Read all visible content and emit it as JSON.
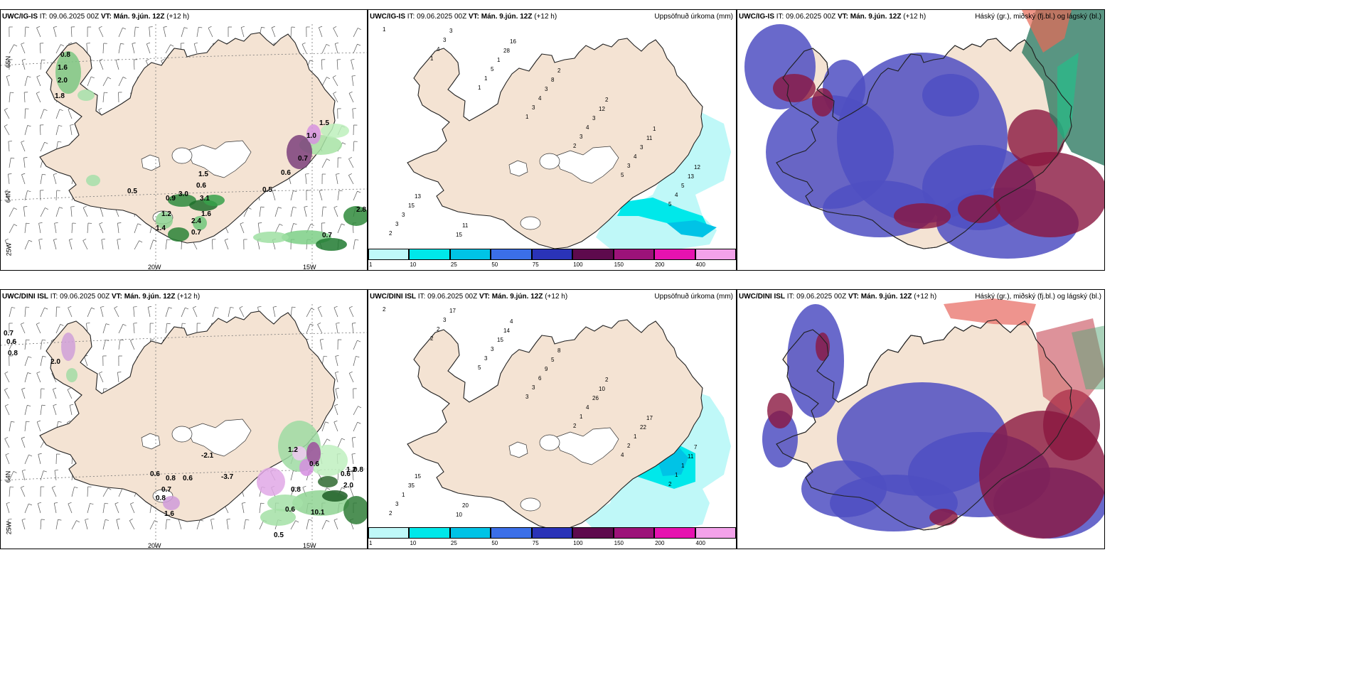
{
  "panels": [
    {
      "model": "UWC/IG-IS",
      "it": "IT: 09.06.2025 00Z",
      "vt": "VT: Mán. 9.jún. 12Z",
      "lead": "(+12 h)",
      "right": ""
    },
    {
      "model": "UWC/IG-IS",
      "it": "IT: 09.06.2025 00Z",
      "vt": "VT: Mán. 9.jún. 12Z",
      "lead": "(+12 h)",
      "right": "Uppsöfnuð úrkoma (mm)"
    },
    {
      "model": "UWC/IG-IS",
      "it": "IT: 09.06.2025 00Z",
      "vt": "VT: Mán. 9.jún. 12Z",
      "lead": "(+12 h)",
      "right": "Háský (gr.), miðský (fj.bl.) og lágský (bl.)"
    },
    {
      "model": "UWC/DINI ISL",
      "it": "IT: 09.06.2025 00Z",
      "vt": "VT: Mán. 9.jún. 12Z",
      "lead": "(+12 h)",
      "right": ""
    },
    {
      "model": "UWC/DINI ISL",
      "it": "IT: 09.06.2025 00Z",
      "vt": "VT: Mán. 9.jún. 12Z",
      "lead": "(+12 h)",
      "right": "Uppsöfnuð úrkoma (mm)"
    },
    {
      "model": "UWC/DINI ISL",
      "it": "IT: 09.06.2025 00Z",
      "vt": "VT: Mán. 9.jún. 12Z",
      "lead": "(+12 h)",
      "right": "Háský (gr.), miðský (fj.bl.) og lágský (bl.)"
    }
  ],
  "axes": {
    "lon_a": "20W",
    "lon_b": "15W",
    "lat_a": "65N",
    "lat_b": "64N",
    "lat_c": "25W"
  },
  "colorbar": {
    "ticks": [
      "1",
      "10",
      "25",
      "50",
      "75",
      "100",
      "150",
      "200",
      "400"
    ],
    "colors": [
      "#bff8f8",
      "#00e8ea",
      "#00c3e6",
      "#3b6fe8",
      "#2a33b8",
      "#5e0a4d",
      "#9c1279",
      "#e612b0",
      "#f3a2ea"
    ]
  },
  "precip_top": [
    "1",
    "1",
    "1",
    "1",
    "2",
    "5",
    "5",
    "2",
    "4",
    "1",
    "3",
    "3",
    "3",
    "4",
    "3",
    "3",
    "5",
    "4",
    "4",
    "4",
    "5",
    "3",
    "3",
    "1",
    "3",
    "3",
    "3",
    "13",
    "15",
    "15",
    "28",
    "8",
    "12",
    "11",
    "12",
    "13",
    "11",
    "16",
    "2",
    "2",
    "1"
  ],
  "precip_bottom": [
    "2",
    "2",
    "5",
    "3",
    "2",
    "4",
    "2",
    "2",
    "2",
    "3",
    "3",
    "1",
    "2",
    "1",
    "3",
    "3",
    "3",
    "6",
    "4",
    "1",
    "1",
    "1",
    "17",
    "15",
    "9",
    "26",
    "22",
    "11",
    "35",
    "10",
    "14",
    "5",
    "10",
    "17",
    "7",
    "15",
    "20",
    "4",
    "8",
    "2"
  ],
  "wind_top": [
    "0.8",
    "1.6",
    "2.0",
    "1.8",
    "0.5",
    "0.9",
    "3.0",
    "1.5",
    "0.6",
    "3.1",
    "1.6",
    "2.4",
    "0.7",
    "1.2",
    "1.4",
    "0.5",
    "0.6",
    "1.0",
    "0.7",
    "1.5",
    "2.8",
    "0.7"
  ],
  "wind_bottom": [
    "0.7",
    "0.6",
    "0.8",
    "2.0",
    "0.6",
    "0.8",
    "0.6",
    "0.7",
    "0.8",
    "1.6",
    "-2.1",
    "-3.7",
    "0.6",
    "1.2",
    "0.6",
    "1.2",
    "2.0",
    "0.8",
    "0.6",
    "10.1",
    "0.5",
    "0.8"
  ]
}
